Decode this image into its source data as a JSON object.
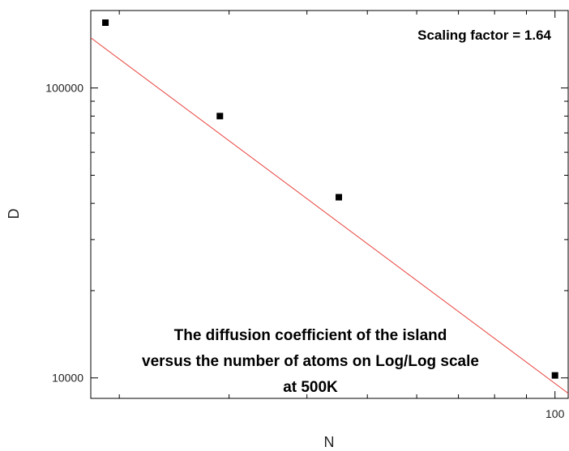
{
  "chart_data": {
    "type": "scatter",
    "xlabel": "N",
    "ylabel": "D",
    "x_scale": "log",
    "y_scale": "log",
    "xlim": [
      18,
      105
    ],
    "ylim": [
      8500,
      185000
    ],
    "x_major_ticks": [
      {
        "value": 100,
        "label": "100"
      }
    ],
    "x_minor_ticks": [
      20,
      30,
      40,
      50,
      60,
      70,
      80,
      90
    ],
    "y_major_ticks": [
      {
        "value": 10000,
        "label": "10000"
      },
      {
        "value": 100000,
        "label": "100000"
      }
    ],
    "y_minor_ticks": [
      20000,
      30000,
      40000,
      50000,
      60000,
      70000,
      80000,
      90000
    ],
    "grid": false,
    "legend": "none",
    "series": [
      {
        "marker": "square",
        "color": "#000000",
        "points": [
          {
            "x": 19,
            "y": 168000
          },
          {
            "x": 29,
            "y": 80000
          },
          {
            "x": 45,
            "y": 42000
          },
          {
            "x": 100,
            "y": 10200
          }
        ]
      }
    ],
    "fit_line": {
      "color": "#e8413c",
      "points": [
        {
          "x": 18,
          "y": 149000
        },
        {
          "x": 105,
          "y": 8850
        }
      ]
    },
    "annotations": {
      "scaling": "Scaling factor = 1.64",
      "caption": [
        "The diffusion coefficient of the island",
        "versus the number of atoms on Log/Log scale",
        "at 500K"
      ]
    }
  }
}
